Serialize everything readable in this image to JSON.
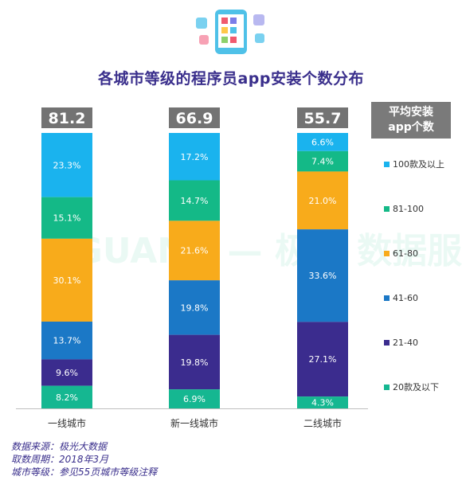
{
  "title": "各城市等级的程序员app安装个数分布",
  "legend_title": [
    "平均安装",
    "app个数"
  ],
  "notes": [
    "数据来源：极光大数据",
    "取数周期：2018年3月",
    "城市等级：参见55页城市等级注释"
  ],
  "watermark": "JIGUANG — 极光 数据服务",
  "colors": {
    "100款及以上": "#1ab3ee",
    "81-100": "#14b987",
    "61-80": "#f8ab1b",
    "41-60": "#1b78c6",
    "21-40": "#3b2c8e",
    "20款及以下": "#15b791",
    "avg_box": "#737373",
    "title": "#3a2f8c"
  },
  "chart_data": {
    "type": "bar",
    "stacked": true,
    "percent": true,
    "title": "各城市等级的程序员app安装个数分布",
    "categories": [
      "一线城市",
      "新一线城市",
      "二线城市"
    ],
    "averages": [
      81.2,
      66.9,
      55.7
    ],
    "series": [
      {
        "name": "100款及以上",
        "values": [
          23.3,
          17.2,
          6.6
        ]
      },
      {
        "name": "81-100",
        "values": [
          15.1,
          14.7,
          7.4
        ]
      },
      {
        "name": "61-80",
        "values": [
          30.1,
          21.6,
          21.0
        ]
      },
      {
        "name": "41-60",
        "values": [
          13.7,
          19.8,
          33.6
        ]
      },
      {
        "name": "21-40",
        "values": [
          9.6,
          19.8,
          27.1
        ]
      },
      {
        "name": "20款及以下",
        "values": [
          8.2,
          6.9,
          4.3
        ]
      }
    ],
    "legend_order": [
      "100款及以上",
      "81-100",
      "61-80",
      "41-60",
      "21-40",
      "20款及以下"
    ],
    "legend_position": "right"
  }
}
